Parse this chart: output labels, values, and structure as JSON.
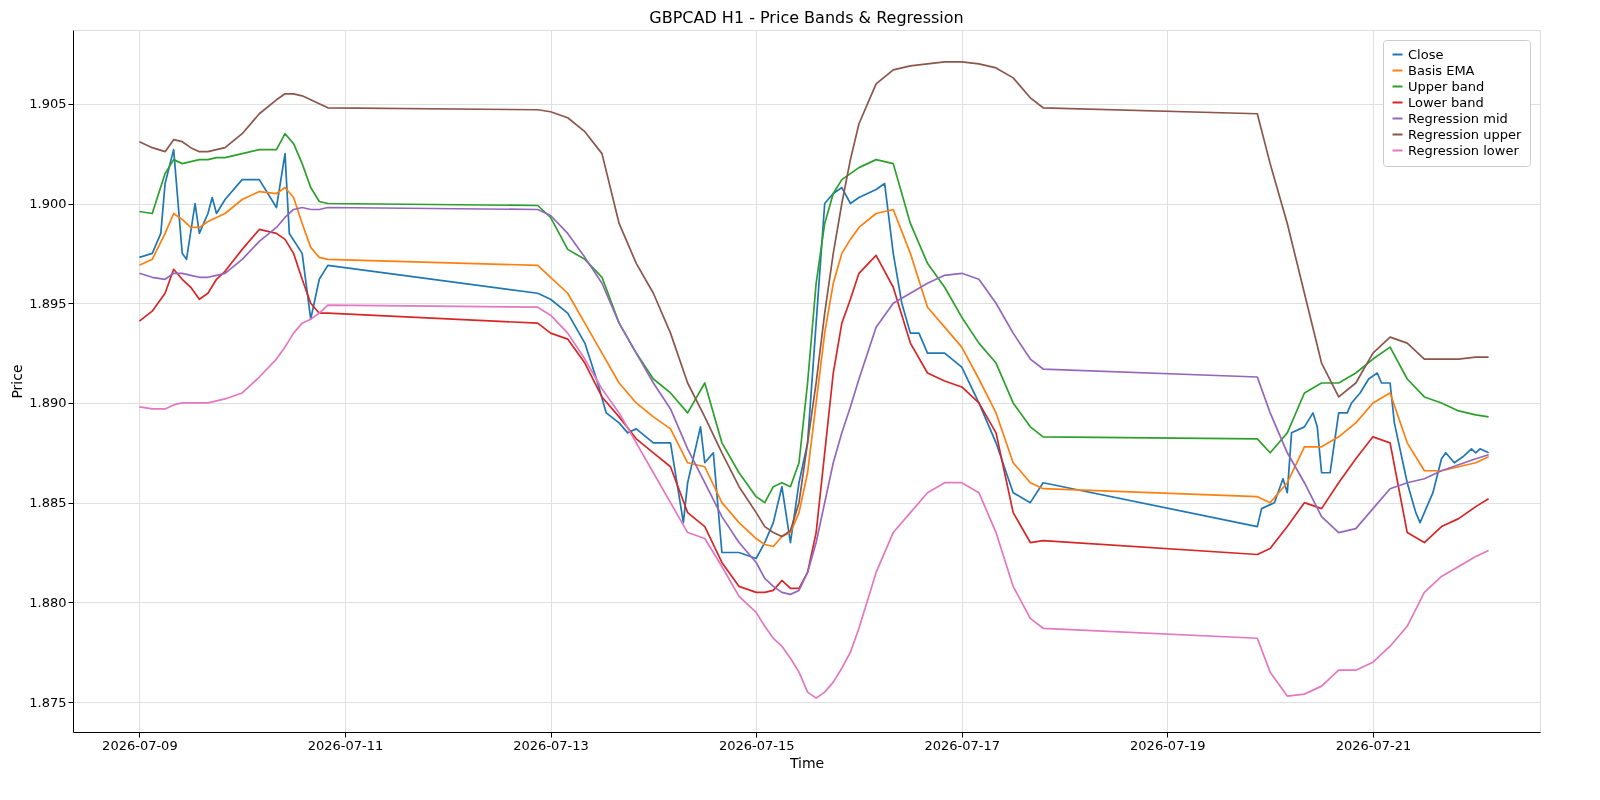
{
  "chart_data": {
    "type": "line",
    "title": "GBPCAD H1 - Price Bands & Regression",
    "xlabel": "Time",
    "ylabel": "Price",
    "x": [
      "2026-07-09T00:00",
      "2026-07-09T03:00",
      "2026-07-09T06:00",
      "2026-07-09T08:00",
      "2026-07-09T10:00",
      "2026-07-09T12:00",
      "2026-07-09T14:00",
      "2026-07-09T16:00",
      "2026-07-09T18:00",
      "2026-07-09T20:00",
      "2026-07-10T00:00",
      "2026-07-10T04:00",
      "2026-07-10T08:00",
      "2026-07-10T10:00",
      "2026-07-10T12:00",
      "2026-07-10T14:00",
      "2026-07-10T16:00",
      "2026-07-10T18:00",
      "2026-07-10T20:00",
      "2026-07-12T21:00",
      "2026-07-13T00:00",
      "2026-07-13T04:00",
      "2026-07-13T08:00",
      "2026-07-13T12:00",
      "2026-07-13T16:00",
      "2026-07-13T20:00",
      "2026-07-14T00:00",
      "2026-07-14T04:00",
      "2026-07-14T08:00",
      "2026-07-14T12:00",
      "2026-07-14T16:00",
      "2026-07-14T20:00",
      "2026-07-15T00:00",
      "2026-07-15T02:00",
      "2026-07-15T04:00",
      "2026-07-15T06:00",
      "2026-07-15T08:00",
      "2026-07-15T10:00",
      "2026-07-15T12:00",
      "2026-07-15T14:00",
      "2026-07-15T16:00",
      "2026-07-15T18:00",
      "2026-07-15T20:00",
      "2026-07-15T22:00",
      "2026-07-16T00:00",
      "2026-07-16T04:00",
      "2026-07-16T08:00",
      "2026-07-16T12:00",
      "2026-07-16T16:00",
      "2026-07-16T20:00",
      "2026-07-17T00:00",
      "2026-07-17T04:00",
      "2026-07-17T08:00",
      "2026-07-17T12:00",
      "2026-07-17T16:00",
      "2026-07-17T19:00",
      "2026-07-19T21:00",
      "2026-07-20T00:00",
      "2026-07-20T04:00",
      "2026-07-20T08:00",
      "2026-07-20T12:00",
      "2026-07-20T16:00",
      "2026-07-20T20:00",
      "2026-07-21T00:00",
      "2026-07-21T04:00",
      "2026-07-21T08:00",
      "2026-07-21T12:00",
      "2026-07-21T16:00",
      "2026-07-21T20:00",
      "2026-07-22T00:00",
      "2026-07-22T03:00"
    ],
    "xlim": [
      "2026-07-08T08:30",
      "2026-07-22T15:00"
    ],
    "xticks": [
      "2026-07-09",
      "2026-07-11",
      "2026-07-13",
      "2026-07-15",
      "2026-07-17",
      "2026-07-19",
      "2026-07-21"
    ],
    "ylim": [
      1.8735,
      1.9087
    ],
    "yticks": [
      1.875,
      {
        "value": 1.88,
        "label": "1.880"
      },
      1.885,
      {
        "value": 1.89,
        "label": "1.890"
      },
      1.895,
      {
        "value": 1.9,
        "label": "1.900"
      },
      1.905
    ],
    "grid": true,
    "legend": "top right",
    "series": [
      {
        "name": "Close",
        "color": "#1f77b4",
        "x": [
          "2026-07-09T00:00",
          "2026-07-09T03:00",
          "2026-07-09T05:00",
          "2026-07-09T06:00",
          "2026-07-09T08:00",
          "2026-07-09T10:00",
          "2026-07-09T11:00",
          "2026-07-09T13:00",
          "2026-07-09T14:00",
          "2026-07-09T16:00",
          "2026-07-09T17:00",
          "2026-07-09T18:00",
          "2026-07-09T20:00",
          "2026-07-10T00:00",
          "2026-07-10T04:00",
          "2026-07-10T08:00",
          "2026-07-10T10:00",
          "2026-07-10T11:00",
          "2026-07-10T14:00",
          "2026-07-10T16:00",
          "2026-07-10T18:00",
          "2026-07-10T20:00",
          "2026-07-12T21:00",
          "2026-07-13T00:00",
          "2026-07-13T04:00",
          "2026-07-13T08:00",
          "2026-07-13T11:00",
          "2026-07-13T13:00",
          "2026-07-13T16:00",
          "2026-07-13T18:00",
          "2026-07-13T20:00",
          "2026-07-14T00:00",
          "2026-07-14T04:00",
          "2026-07-14T07:00",
          "2026-07-14T08:00",
          "2026-07-14T11:00",
          "2026-07-14T12:00",
          "2026-07-14T14:00",
          "2026-07-14T16:00",
          "2026-07-14T20:00",
          "2026-07-15T00:00",
          "2026-07-15T02:00",
          "2026-07-15T04:00",
          "2026-07-15T06:00",
          "2026-07-15T08:00",
          "2026-07-15T10:00",
          "2026-07-15T12:00",
          "2026-07-15T14:00",
          "2026-07-15T16:00",
          "2026-07-15T18:00",
          "2026-07-15T20:00",
          "2026-07-15T22:00",
          "2026-07-16T00:00",
          "2026-07-16T04:00",
          "2026-07-16T06:00",
          "2026-07-16T08:00",
          "2026-07-16T10:00",
          "2026-07-16T12:00",
          "2026-07-16T14:00",
          "2026-07-16T16:00",
          "2026-07-16T20:00",
          "2026-07-17T00:00",
          "2026-07-17T04:00",
          "2026-07-17T08:00",
          "2026-07-17T12:00",
          "2026-07-17T16:00",
          "2026-07-17T19:00",
          "2026-07-19T21:00",
          "2026-07-19T22:00",
          "2026-07-20T01:00",
          "2026-07-20T03:00",
          "2026-07-20T04:00",
          "2026-07-20T05:00",
          "2026-07-20T08:00",
          "2026-07-20T10:00",
          "2026-07-20T11:00",
          "2026-07-20T12:00",
          "2026-07-20T14:00",
          "2026-07-20T16:00",
          "2026-07-20T18:00",
          "2026-07-20T19:00",
          "2026-07-20T21:00",
          "2026-07-20T23:00",
          "2026-07-21T01:00",
          "2026-07-21T02:00",
          "2026-07-21T04:00",
          "2026-07-21T05:00",
          "2026-07-21T08:00",
          "2026-07-21T10:00",
          "2026-07-21T11:00",
          "2026-07-21T14:00",
          "2026-07-21T16:00",
          "2026-07-21T17:00",
          "2026-07-21T19:00",
          "2026-07-21T21:00",
          "2026-07-21T23:00",
          "2026-07-22T00:00",
          "2026-07-22T01:00",
          "2026-07-22T03:00"
        ],
        "values": [
          1.8973,
          1.8975,
          1.8985,
          1.901,
          1.9027,
          1.8975,
          1.8972,
          1.9,
          1.8985,
          1.8995,
          1.9003,
          1.8995,
          1.9002,
          1.9012,
          1.9012,
          1.8998,
          1.9025,
          1.8985,
          1.8975,
          1.8942,
          1.8962,
          1.8969,
          1.8955,
          1.8952,
          1.8945,
          1.893,
          1.891,
          1.8895,
          1.889,
          1.8885,
          1.8887,
          1.888,
          1.888,
          1.884,
          1.886,
          1.8888,
          1.887,
          1.8875,
          1.8825,
          1.8825,
          1.8822,
          1.883,
          1.884,
          1.8858,
          1.883,
          1.886,
          1.888,
          1.894,
          1.9,
          1.9005,
          1.9008,
          1.9,
          1.9003,
          1.9007,
          1.901,
          1.8975,
          1.895,
          1.8935,
          1.8935,
          1.8925,
          1.8925,
          1.8918,
          1.89,
          1.888,
          1.8855,
          1.885,
          1.886,
          1.8838,
          1.8847,
          1.885,
          1.8862,
          1.8855,
          1.8885,
          1.8888,
          1.8895,
          1.8888,
          1.8865,
          1.8865,
          1.8895,
          1.8895,
          1.89,
          1.8905,
          1.8912,
          1.8915,
          1.891,
          1.891,
          1.889,
          1.886,
          1.8845,
          1.884,
          1.8855,
          1.8872,
          1.8875,
          1.887,
          1.8873,
          1.8877,
          1.8875,
          1.8877,
          1.8875
        ]
      },
      {
        "name": "Basis EMA",
        "color": "#ff7f0e",
        "values": [
          1.8969,
          1.8972,
          1.8985,
          1.8995,
          1.8992,
          1.8988,
          1.8988,
          1.8991,
          1.8993,
          1.8995,
          1.9002,
          1.9006,
          1.9005,
          1.9008,
          1.9003,
          1.899,
          1.8978,
          1.8973,
          1.8972,
          1.8969,
          1.8963,
          1.8955,
          1.894,
          1.8925,
          1.891,
          1.89,
          1.8893,
          1.8887,
          1.887,
          1.8868,
          1.885,
          1.884,
          1.8832,
          1.8829,
          1.8828,
          1.8833,
          1.8835,
          1.8845,
          1.8865,
          1.89,
          1.8935,
          1.896,
          1.8975,
          1.8982,
          1.8988,
          1.8995,
          1.8997,
          1.8975,
          1.8948,
          1.8938,
          1.8928,
          1.8912,
          1.8895,
          1.887,
          1.886,
          1.8857,
          1.8853,
          1.885,
          1.886,
          1.8878,
          1.8878,
          1.8883,
          1.889,
          1.89,
          1.8905,
          1.888,
          1.8866,
          1.8866,
          1.8868,
          1.887,
          1.8873
        ]
      },
      {
        "name": "Upper band",
        "color": "#2ca02c",
        "values": [
          1.8996,
          1.8995,
          1.9015,
          1.9022,
          1.902,
          1.9021,
          1.9022,
          1.9022,
          1.9023,
          1.9023,
          1.9025,
          1.9027,
          1.9027,
          1.9035,
          1.903,
          1.902,
          1.9008,
          1.9001,
          1.9,
          1.8999,
          1.8993,
          1.8977,
          1.8972,
          1.8963,
          1.894,
          1.8925,
          1.8912,
          1.8905,
          1.8895,
          1.891,
          1.888,
          1.8865,
          1.8853,
          1.885,
          1.8858,
          1.886,
          1.8858,
          1.887,
          1.891,
          1.896,
          1.899,
          1.9005,
          1.9012,
          1.9015,
          1.9018,
          1.9022,
          1.902,
          1.899,
          1.897,
          1.8958,
          1.8943,
          1.893,
          1.892,
          1.89,
          1.8888,
          1.8883,
          1.8882,
          1.8875,
          1.8885,
          1.8905,
          1.891,
          1.891,
          1.8915,
          1.8922,
          1.8928,
          1.8912,
          1.8903,
          1.89,
          1.8896,
          1.8894,
          1.8893
        ]
      },
      {
        "name": "Lower band",
        "color": "#d62728",
        "values": [
          1.8941,
          1.8946,
          1.8955,
          1.8967,
          1.8962,
          1.8958,
          1.8952,
          1.8955,
          1.8962,
          1.8966,
          1.8977,
          1.8987,
          1.8985,
          1.8982,
          1.8975,
          1.8962,
          1.895,
          1.8945,
          1.8945,
          1.894,
          1.8935,
          1.8932,
          1.892,
          1.8903,
          1.8893,
          1.8882,
          1.8875,
          1.8868,
          1.8845,
          1.8838,
          1.882,
          1.8808,
          1.8805,
          1.8805,
          1.8806,
          1.8811,
          1.8807,
          1.8807,
          1.8815,
          1.8835,
          1.8875,
          1.8915,
          1.894,
          1.8952,
          1.8965,
          1.8974,
          1.8958,
          1.893,
          1.8915,
          1.8911,
          1.8908,
          1.89,
          1.8885,
          1.8845,
          1.883,
          1.8831,
          1.8824,
          1.8827,
          1.8838,
          1.885,
          1.8847,
          1.886,
          1.8872,
          1.8883,
          1.888,
          1.8835,
          1.883,
          1.8838,
          1.8842,
          1.8848,
          1.8852
        ]
      },
      {
        "name": "Regression mid",
        "color": "#9467bd",
        "values": [
          1.8965,
          1.8963,
          1.8962,
          1.8965,
          1.8965,
          1.8964,
          1.8963,
          1.8963,
          1.8964,
          1.8965,
          1.8972,
          1.8981,
          1.8988,
          1.8993,
          1.8997,
          1.8998,
          1.8997,
          1.8997,
          1.8998,
          1.8997,
          1.8994,
          1.8985,
          1.8973,
          1.896,
          1.894,
          1.8925,
          1.891,
          1.8897,
          1.8877,
          1.886,
          1.8843,
          1.883,
          1.882,
          1.8812,
          1.8808,
          1.8805,
          1.8804,
          1.8806,
          1.8815,
          1.883,
          1.885,
          1.887,
          1.8885,
          1.8898,
          1.8912,
          1.8938,
          1.895,
          1.8955,
          1.896,
          1.8964,
          1.8965,
          1.8962,
          1.895,
          1.8935,
          1.8922,
          1.8917,
          1.8913,
          1.8895,
          1.8875,
          1.886,
          1.8843,
          1.8835,
          1.8837,
          1.8847,
          1.8857,
          1.886,
          1.8862,
          1.8866,
          1.8869,
          1.8872,
          1.8874
        ]
      },
      {
        "name": "Regression upper",
        "color": "#8c564b",
        "values": [
          1.9031,
          1.9028,
          1.9026,
          1.9032,
          1.9031,
          1.9028,
          1.9026,
          1.9026,
          1.9027,
          1.9028,
          1.9035,
          1.9045,
          1.9052,
          1.9055,
          1.9055,
          1.9054,
          1.9052,
          1.905,
          1.9048,
          1.9047,
          1.9046,
          1.9043,
          1.9036,
          1.9025,
          1.899,
          1.897,
          1.8955,
          1.8935,
          1.891,
          1.8893,
          1.8875,
          1.8858,
          1.8845,
          1.8838,
          1.8835,
          1.8833,
          1.8836,
          1.885,
          1.888,
          1.891,
          1.8945,
          1.8975,
          1.9,
          1.9022,
          1.904,
          1.906,
          1.9067,
          1.9069,
          1.907,
          1.9071,
          1.9071,
          1.907,
          1.9068,
          1.9063,
          1.9053,
          1.9048,
          1.9045,
          1.902,
          1.899,
          1.8955,
          1.892,
          1.8903,
          1.891,
          1.8925,
          1.8933,
          1.893,
          1.8922,
          1.8922,
          1.8922,
          1.8923,
          1.8923
        ]
      },
      {
        "name": "Regression lower",
        "color": "#e377c2",
        "values": [
          1.8898,
          1.8897,
          1.8897,
          1.8899,
          1.89,
          1.89,
          1.89,
          1.89,
          1.8901,
          1.8902,
          1.8905,
          1.8913,
          1.8922,
          1.8928,
          1.8935,
          1.894,
          1.8942,
          1.8945,
          1.8949,
          1.8948,
          1.8944,
          1.8935,
          1.8922,
          1.8907,
          1.8895,
          1.888,
          1.8865,
          1.885,
          1.8835,
          1.8832,
          1.8818,
          1.8803,
          1.8795,
          1.8788,
          1.8782,
          1.8778,
          1.8772,
          1.8765,
          1.8755,
          1.8752,
          1.8755,
          1.876,
          1.8767,
          1.8775,
          1.8787,
          1.8815,
          1.8835,
          1.8845,
          1.8855,
          1.886,
          1.886,
          1.8855,
          1.8835,
          1.8808,
          1.8792,
          1.8787,
          1.8782,
          1.8765,
          1.8753,
          1.8754,
          1.8758,
          1.8766,
          1.8766,
          1.877,
          1.8778,
          1.8788,
          1.8805,
          1.8813,
          1.8818,
          1.8823,
          1.8826
        ]
      }
    ]
  }
}
